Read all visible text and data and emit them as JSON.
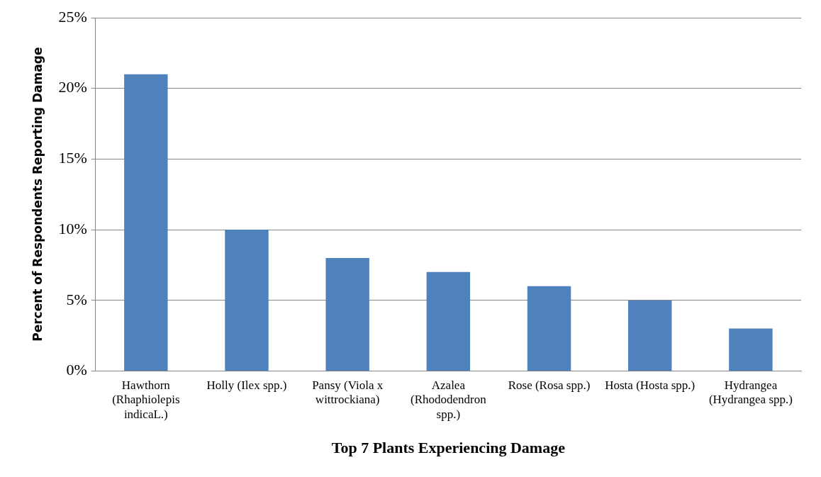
{
  "chart_data": {
    "type": "bar",
    "xlabel": "Top 7 Plants Experiencing Damage",
    "ylabel": "Percent of Respondents Reporting Damage",
    "categories": [
      "Hawthorn (Rhaphiolepis indicaL.)",
      "Holly (Ilex spp.)",
      "Pansy (Viola x wittrockiana)",
      "Azalea (Rhododendron spp.)",
      "Rose (Rosa spp.)",
      "Hosta (Hosta spp.)",
      "Hydrangea (Hydrangea spp.)"
    ],
    "values": [
      21,
      10,
      8,
      7,
      6,
      5,
      3
    ],
    "color": "#4f81bd",
    "ylim": [
      0,
      25
    ],
    "yticks": [
      {
        "value": 0,
        "label": "0%"
      },
      {
        "value": 5,
        "label": "5%"
      },
      {
        "value": 10,
        "label": "10%"
      },
      {
        "value": 15,
        "label": "15%"
      },
      {
        "value": 20,
        "label": "20%"
      },
      {
        "value": 25,
        "label": "25%"
      }
    ],
    "grid": "y",
    "legend": false
  }
}
